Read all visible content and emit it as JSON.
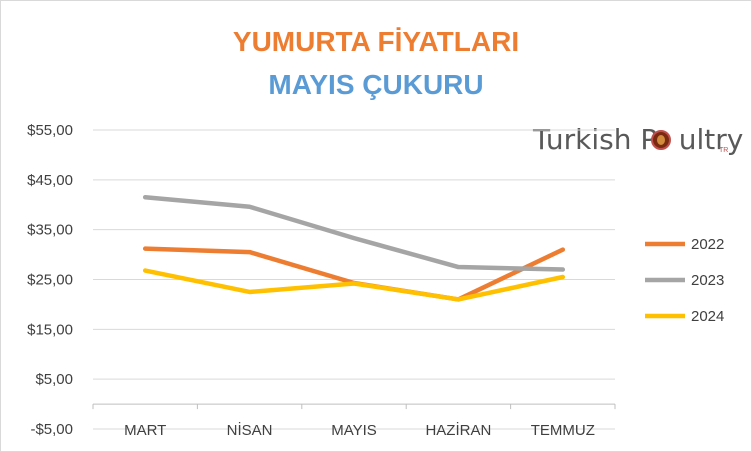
{
  "chart_data": {
    "type": "line",
    "title": "YUMURTA FİYATLARI",
    "subtitle": "MAYIS ÇUKURU",
    "title_color": "#ED7D31",
    "subtitle_color": "#5B9BD5",
    "categories": [
      "MART",
      "NİSAN",
      "MAYIS",
      "HAZİRAN",
      "TEMMUZ"
    ],
    "y_ticks": [
      "-$5,00",
      "$5,00",
      "$15,00",
      "$25,00",
      "$35,00",
      "$45,00",
      "$55,00"
    ],
    "ylim": [
      -5,
      55
    ],
    "grid": true,
    "legend_position": "right",
    "series": [
      {
        "name": "2022",
        "color": "#ED7D31",
        "values": [
          31.2,
          30.5,
          24.3,
          21.0,
          31.0
        ]
      },
      {
        "name": "2023",
        "color": "#A5A5A5",
        "values": [
          41.5,
          39.6,
          33.3,
          27.5,
          27.0
        ]
      },
      {
        "name": "2024",
        "color": "#FFC000",
        "values": [
          26.8,
          22.5,
          24.2,
          21.0,
          25.5
        ]
      }
    ]
  },
  "logo": {
    "name": "turkish-poultry-logo",
    "text_before": "Turkish P",
    "text_after": "ultry",
    "badge": "TR",
    "ring_color": "#C0504D"
  }
}
